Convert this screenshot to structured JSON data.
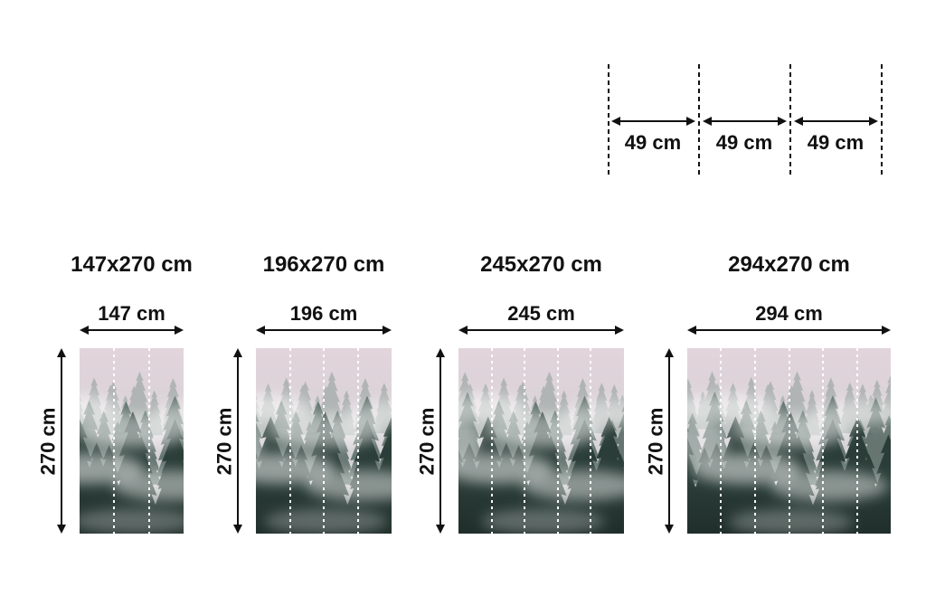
{
  "panel_diagram": {
    "labels": [
      "49 cm",
      "49 cm",
      "49 cm"
    ]
  },
  "sizes": [
    {
      "title": "147x270 cm",
      "width_label": "147 cm",
      "height_label": "270 cm",
      "panels": 3
    },
    {
      "title": "196x270 cm",
      "width_label": "196 cm",
      "height_label": "270 cm",
      "panels": 4
    },
    {
      "title": "245x270 cm",
      "width_label": "245 cm",
      "height_label": "270 cm",
      "panels": 5
    },
    {
      "title": "294x270 cm",
      "width_label": "294 cm",
      "height_label": "270 cm",
      "panels": 6
    }
  ],
  "colors": {
    "ink": "#111111",
    "panel_dash": "#ffffff",
    "sky_top": "#e2d4db",
    "sky_bottom": "#c4cac7",
    "ridge_far": "#8d9d97",
    "ridge_mid": "#4e625b",
    "ridge_near": "#2b3d38",
    "fog": "#ffffff"
  }
}
